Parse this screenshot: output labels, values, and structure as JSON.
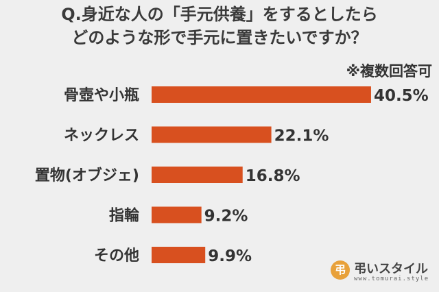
{
  "title_line1": "Q.身近な人の「手元供養」をするとしたら",
  "title_line2": "どのような形で手元に置きたいですか？",
  "note": "※複数回答可",
  "colors": {
    "bar": "#d8501f",
    "background": "#efefef"
  },
  "chart_data": {
    "type": "bar",
    "orientation": "horizontal",
    "categories": [
      "骨壺や小瓶",
      "ネックレス",
      "置物(オブジェ)",
      "指輪",
      "その他"
    ],
    "values": [
      40.5,
      22.1,
      16.8,
      9.2,
      9.9
    ],
    "value_labels": [
      "40.5%",
      "22.1%",
      "16.8%",
      "9.2%",
      "9.9%"
    ],
    "xlim": [
      0,
      50
    ],
    "grid": false
  },
  "logo": {
    "mark": "弔",
    "name": "弔いスタイル",
    "url": "www.tomurai.style"
  }
}
